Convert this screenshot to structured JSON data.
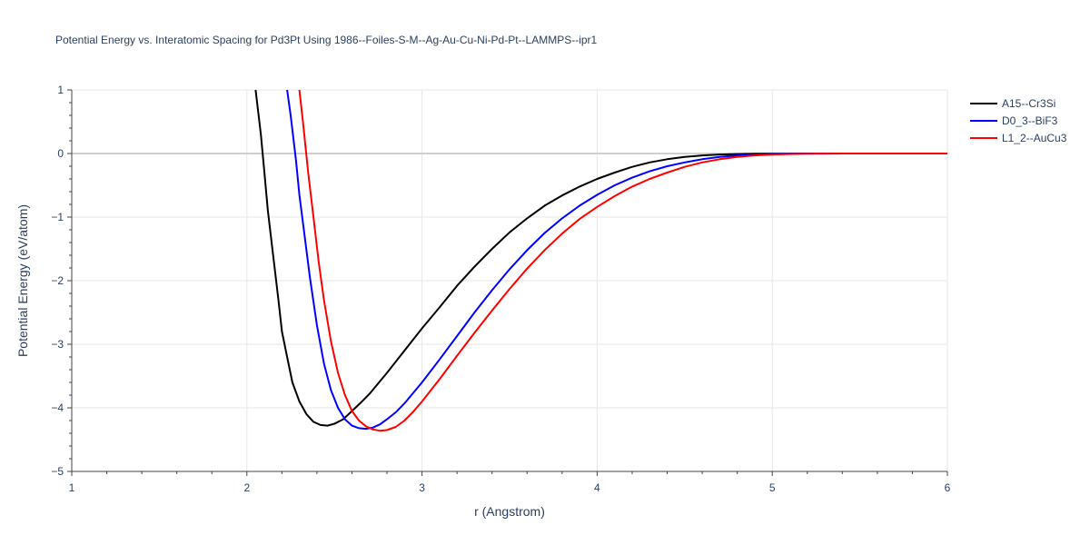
{
  "chart_data": {
    "type": "line",
    "title": "Potential Energy vs. Interatomic Spacing for Pd3Pt Using 1986--Foiles-S-M--Ag-Au-Cu-Ni-Pd-Pt--LAMMPS--ipr1",
    "xlabel": "r (Angstrom)",
    "ylabel": "Potential Energy (eV/atom)",
    "xlim": [
      1,
      6
    ],
    "ylim": [
      -5,
      1
    ],
    "xticks": [
      1,
      2,
      3,
      4,
      5,
      6
    ],
    "xtick_labels": [
      "1",
      "2",
      "3",
      "4",
      "5",
      "6"
    ],
    "yticks": [
      1,
      0,
      -1,
      -2,
      -3,
      -4,
      -5
    ],
    "ytick_labels": [
      "1",
      "0",
      "−1",
      "−2",
      "−3",
      "−4",
      "−5"
    ],
    "grid": true,
    "legend_position": "top-right",
    "series": [
      {
        "name": "A15--Cr3Si",
        "color": "#000000",
        "x": [
          2.05,
          2.08,
          2.1,
          2.12,
          2.15,
          2.18,
          2.2,
          2.23,
          2.26,
          2.3,
          2.34,
          2.38,
          2.42,
          2.46,
          2.5,
          2.55,
          2.6,
          2.65,
          2.7,
          2.8,
          2.9,
          3.0,
          3.1,
          3.2,
          3.3,
          3.4,
          3.5,
          3.6,
          3.7,
          3.8,
          3.9,
          4.0,
          4.1,
          4.2,
          4.3,
          4.4,
          4.5,
          4.6,
          4.7,
          4.8,
          4.9,
          5.0,
          5.1,
          5.2,
          5.3,
          5.4,
          5.6,
          5.8,
          6.0
        ],
        "y": [
          1.0,
          0.3,
          -0.3,
          -0.9,
          -1.6,
          -2.3,
          -2.8,
          -3.2,
          -3.6,
          -3.9,
          -4.1,
          -4.22,
          -4.27,
          -4.28,
          -4.25,
          -4.18,
          -4.05,
          -3.92,
          -3.78,
          -3.45,
          -3.1,
          -2.75,
          -2.42,
          -2.08,
          -1.78,
          -1.5,
          -1.24,
          -1.02,
          -0.82,
          -0.66,
          -0.52,
          -0.4,
          -0.3,
          -0.21,
          -0.14,
          -0.09,
          -0.055,
          -0.03,
          -0.015,
          -0.008,
          -0.004,
          -0.002,
          -0.001,
          0.0,
          0.0,
          0.0,
          0.0,
          0.0,
          0.0
        ]
      },
      {
        "name": "D0_3--BiF3",
        "color": "#0000ff",
        "x": [
          2.23,
          2.25,
          2.28,
          2.3,
          2.33,
          2.36,
          2.4,
          2.44,
          2.48,
          2.52,
          2.56,
          2.6,
          2.64,
          2.68,
          2.72,
          2.76,
          2.8,
          2.85,
          2.9,
          3.0,
          3.1,
          3.2,
          3.3,
          3.4,
          3.5,
          3.6,
          3.7,
          3.8,
          3.9,
          4.0,
          4.1,
          4.2,
          4.3,
          4.4,
          4.5,
          4.6,
          4.7,
          4.8,
          4.9,
          5.0,
          5.1,
          5.2,
          5.3,
          5.4,
          5.6,
          5.8,
          6.0
        ],
        "y": [
          1.0,
          0.6,
          -0.1,
          -0.65,
          -1.3,
          -1.95,
          -2.7,
          -3.3,
          -3.72,
          -4.0,
          -4.18,
          -4.28,
          -4.32,
          -4.33,
          -4.31,
          -4.26,
          -4.18,
          -4.07,
          -3.93,
          -3.6,
          -3.24,
          -2.87,
          -2.5,
          -2.15,
          -1.82,
          -1.52,
          -1.25,
          -1.02,
          -0.82,
          -0.65,
          -0.5,
          -0.38,
          -0.28,
          -0.2,
          -0.14,
          -0.09,
          -0.055,
          -0.03,
          -0.016,
          -0.008,
          -0.004,
          -0.002,
          -0.001,
          0.0,
          0.0,
          0.0,
          0.0
        ]
      },
      {
        "name": "L1_2--AuCu3",
        "color": "#ff0000",
        "x": [
          2.3,
          2.32,
          2.35,
          2.38,
          2.41,
          2.44,
          2.48,
          2.52,
          2.56,
          2.6,
          2.64,
          2.68,
          2.72,
          2.76,
          2.8,
          2.85,
          2.9,
          2.95,
          3.0,
          3.1,
          3.2,
          3.3,
          3.4,
          3.5,
          3.6,
          3.7,
          3.8,
          3.9,
          4.0,
          4.1,
          4.2,
          4.3,
          4.4,
          4.5,
          4.6,
          4.7,
          4.8,
          4.9,
          5.0,
          5.1,
          5.2,
          5.3,
          5.4,
          5.6,
          5.8,
          6.0
        ],
        "y": [
          1.0,
          0.5,
          -0.3,
          -1.0,
          -1.7,
          -2.3,
          -2.95,
          -3.45,
          -3.8,
          -4.05,
          -4.2,
          -4.29,
          -4.34,
          -4.36,
          -4.35,
          -4.3,
          -4.2,
          -4.06,
          -3.9,
          -3.55,
          -3.18,
          -2.82,
          -2.47,
          -2.13,
          -1.81,
          -1.52,
          -1.26,
          -1.03,
          -0.84,
          -0.67,
          -0.52,
          -0.4,
          -0.3,
          -0.21,
          -0.14,
          -0.09,
          -0.055,
          -0.03,
          -0.016,
          -0.008,
          -0.004,
          -0.002,
          0.0,
          0.0,
          0.0,
          0.0
        ]
      }
    ]
  }
}
